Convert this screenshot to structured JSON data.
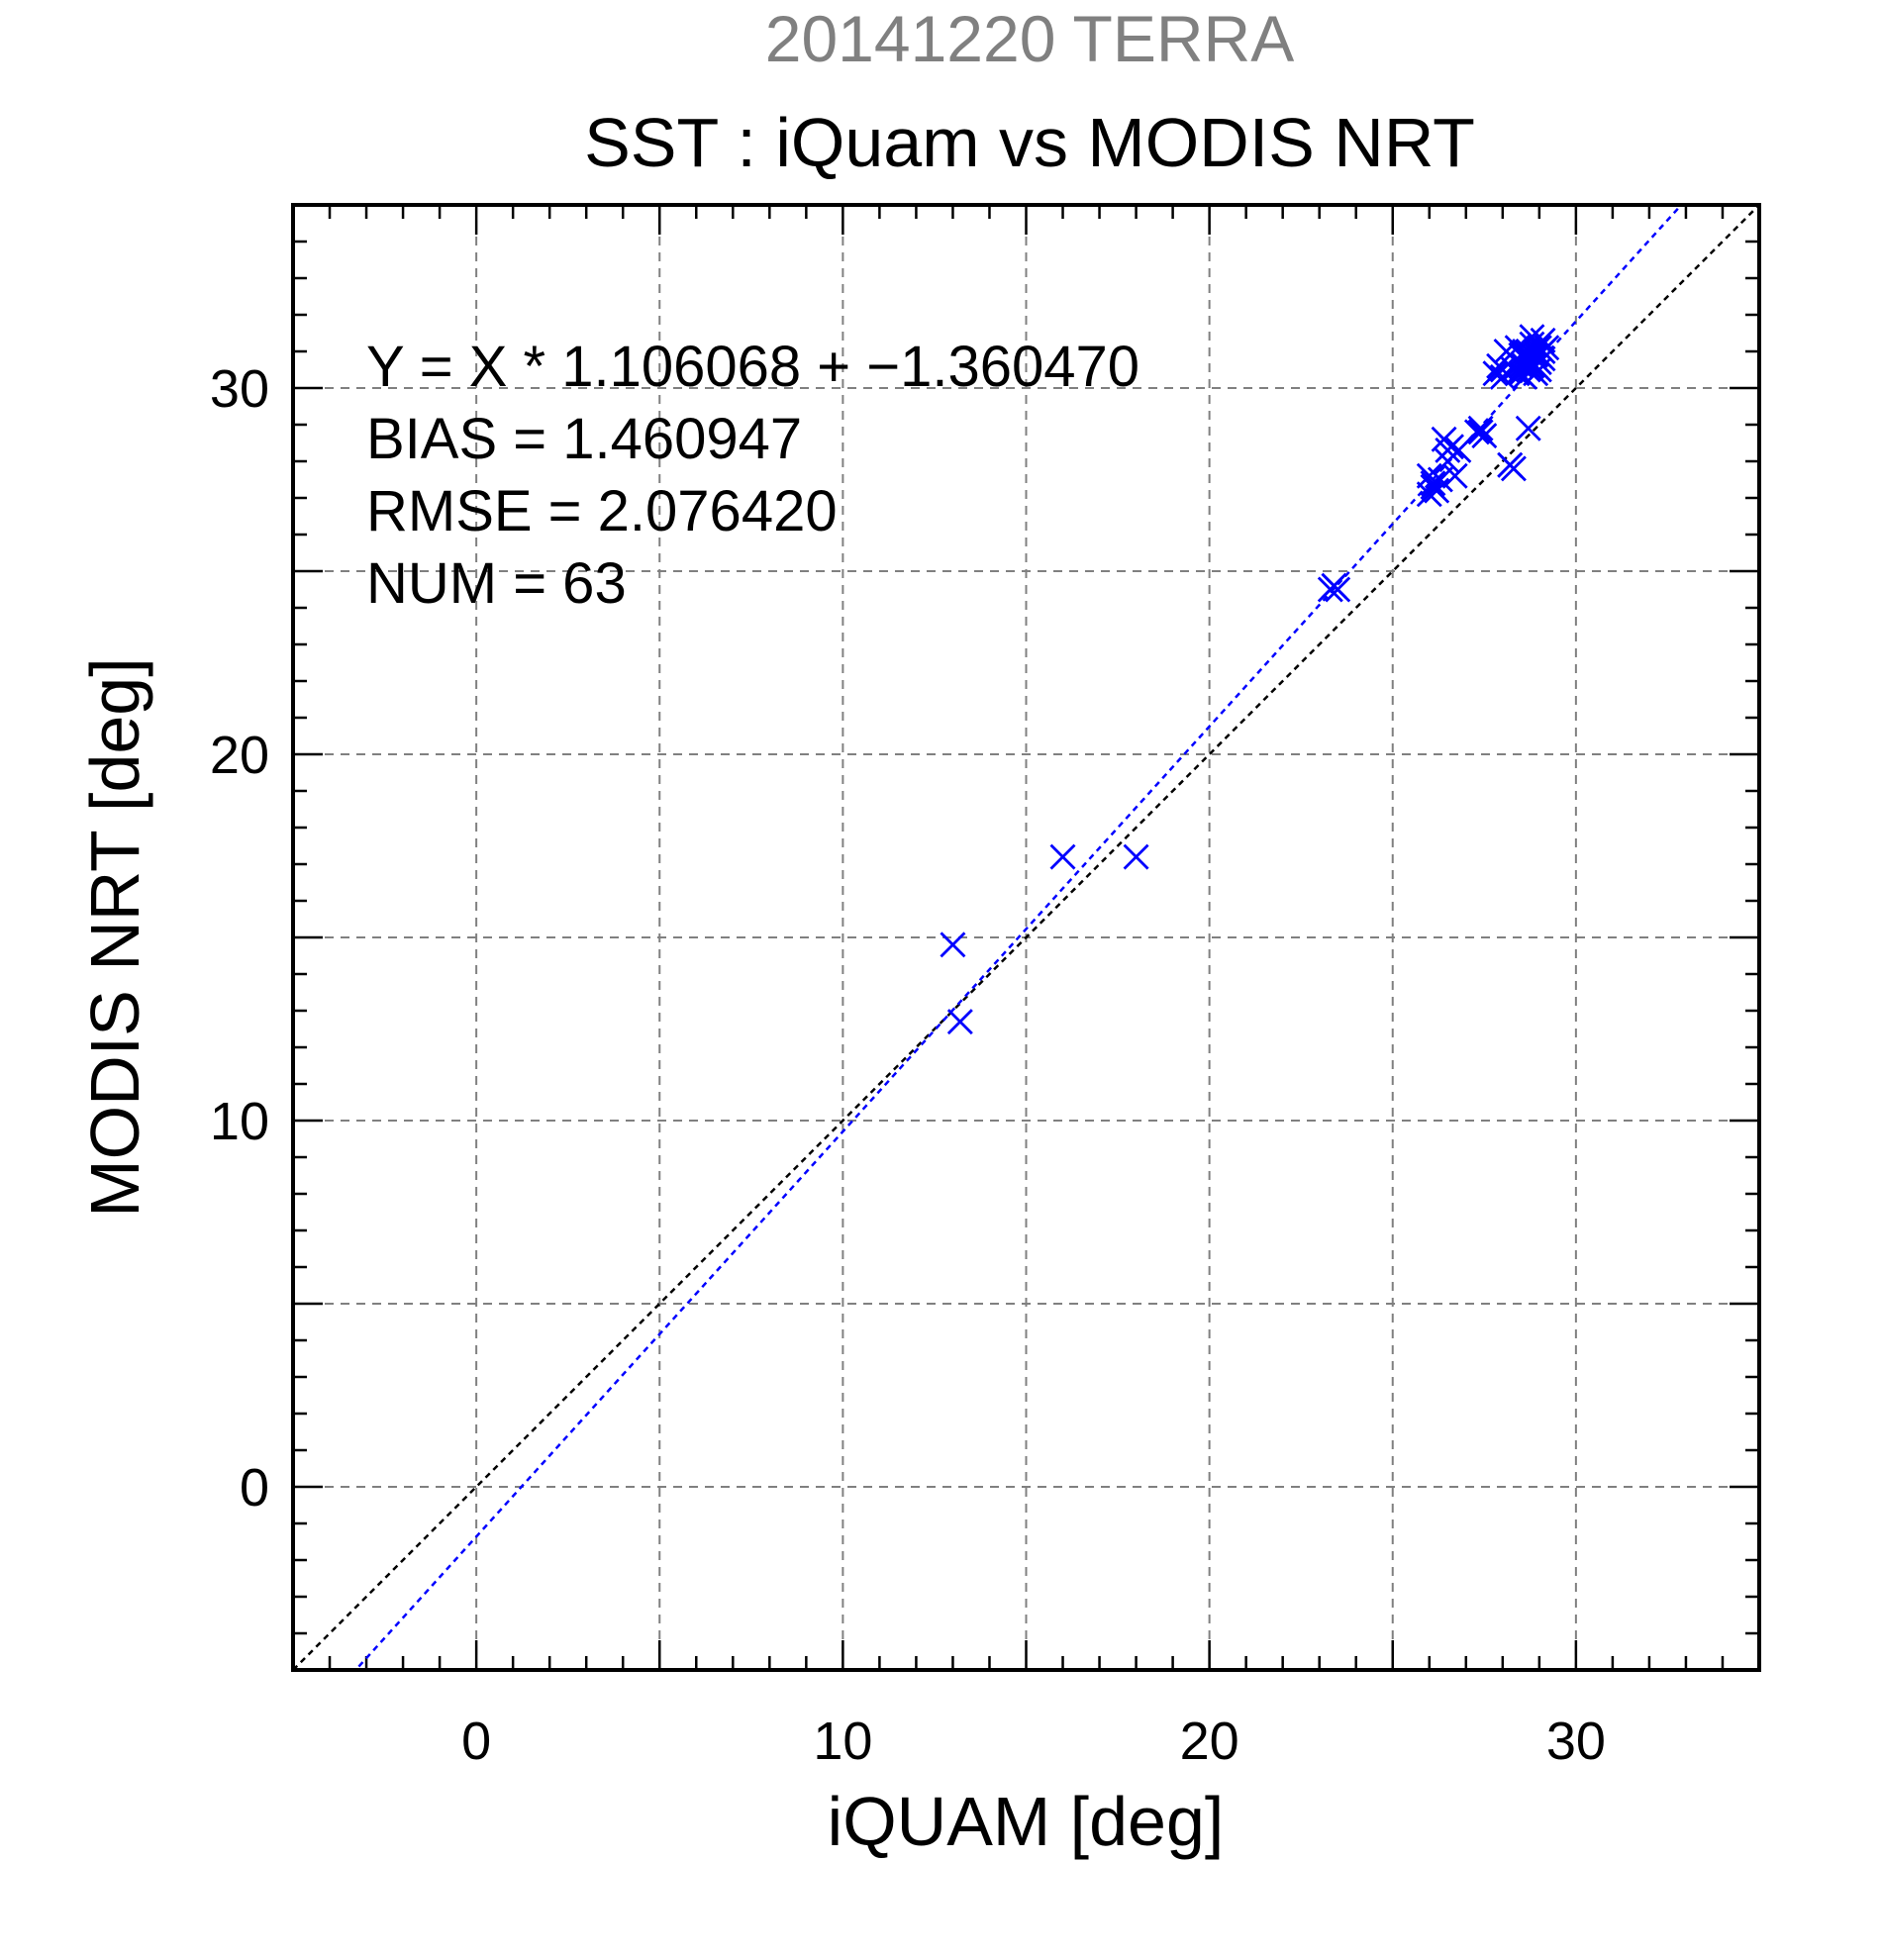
{
  "colors": {
    "background": "#ffffff",
    "supertitle": "#808080",
    "title": "#000000",
    "points": "#0000ff",
    "fit_line": "#0000ff",
    "identity_line": "#000000",
    "grid": "#808080",
    "frame": "#000000"
  },
  "chart_data": {
    "type": "scatter",
    "supertitle": "20141220 TERRA",
    "title": "SST : iQuam vs MODIS NRT",
    "xlabel": "iQUAM [deg]",
    "ylabel": "MODIS NRT [deg]",
    "xlim": [
      -5,
      35
    ],
    "ylim": [
      -5,
      35
    ],
    "xticks": [
      0,
      10,
      20,
      30
    ],
    "yticks": [
      0,
      10,
      20,
      30
    ],
    "grid": true,
    "marker": "x",
    "stats": [
      "Y = X * 1.106068 + −1.360470",
      "BIAS = 1.460947",
      "RMSE = 2.076420",
      "NUM = 63"
    ],
    "fit_line": {
      "slope": 1.106068,
      "intercept": -1.36047
    },
    "identity_line": true,
    "points": [
      {
        "x": 13.0,
        "y": 14.8
      },
      {
        "x": 13.2,
        "y": 12.7
      },
      {
        "x": 16.0,
        "y": 17.2
      },
      {
        "x": 18.0,
        "y": 17.2
      },
      {
        "x": 23.4,
        "y": 24.6
      },
      {
        "x": 23.5,
        "y": 24.5
      },
      {
        "x": 23.3,
        "y": 24.5
      },
      {
        "x": 26.0,
        "y": 27.1
      },
      {
        "x": 26.1,
        "y": 27.3
      },
      {
        "x": 26.0,
        "y": 27.6
      },
      {
        "x": 26.2,
        "y": 27.2
      },
      {
        "x": 26.3,
        "y": 27.5
      },
      {
        "x": 26.5,
        "y": 28.0
      },
      {
        "x": 26.6,
        "y": 28.4
      },
      {
        "x": 26.4,
        "y": 28.6
      },
      {
        "x": 26.7,
        "y": 27.6
      },
      {
        "x": 26.8,
        "y": 28.3
      },
      {
        "x": 27.3,
        "y": 28.8
      },
      {
        "x": 27.5,
        "y": 28.7
      },
      {
        "x": 27.4,
        "y": 28.9
      },
      {
        "x": 27.8,
        "y": 30.4
      },
      {
        "x": 27.9,
        "y": 30.6
      },
      {
        "x": 28.0,
        "y": 30.3
      },
      {
        "x": 28.1,
        "y": 31.0
      },
      {
        "x": 28.2,
        "y": 27.9
      },
      {
        "x": 28.3,
        "y": 27.8
      },
      {
        "x": 28.4,
        "y": 30.7
      },
      {
        "x": 28.5,
        "y": 30.4
      },
      {
        "x": 28.6,
        "y": 31.0
      },
      {
        "x": 28.7,
        "y": 30.5
      },
      {
        "x": 28.8,
        "y": 31.2
      },
      {
        "x": 28.7,
        "y": 28.9
      },
      {
        "x": 28.8,
        "y": 30.6
      },
      {
        "x": 28.9,
        "y": 30.9
      },
      {
        "x": 29.0,
        "y": 31.1
      },
      {
        "x": 29.1,
        "y": 31.3
      },
      {
        "x": 28.9,
        "y": 30.4
      },
      {
        "x": 29.0,
        "y": 30.7
      },
      {
        "x": 28.6,
        "y": 30.6
      },
      {
        "x": 28.5,
        "y": 30.9
      },
      {
        "x": 29.2,
        "y": 31.1
      },
      {
        "x": 28.8,
        "y": 31.4
      },
      {
        "x": 29.0,
        "y": 30.5
      },
      {
        "x": 28.7,
        "y": 30.8
      },
      {
        "x": 28.3,
        "y": 30.5
      },
      {
        "x": 28.9,
        "y": 31.0
      },
      {
        "x": 29.1,
        "y": 30.8
      },
      {
        "x": 28.6,
        "y": 30.3
      },
      {
        "x": 28.4,
        "y": 31.1
      },
      {
        "x": 28.2,
        "y": 27.9
      },
      {
        "x": 27.4,
        "y": 28.8
      },
      {
        "x": 26.5,
        "y": 28.3
      },
      {
        "x": 26.1,
        "y": 27.4
      },
      {
        "x": 23.4,
        "y": 24.6
      },
      {
        "x": 28.0,
        "y": 30.5
      },
      {
        "x": 28.9,
        "y": 30.6
      },
      {
        "x": 29.0,
        "y": 30.9
      },
      {
        "x": 28.8,
        "y": 30.7
      },
      {
        "x": 28.7,
        "y": 31.0
      },
      {
        "x": 28.6,
        "y": 30.8
      },
      {
        "x": 28.5,
        "y": 30.6
      },
      {
        "x": 29.1,
        "y": 31.0
      },
      {
        "x": 28.4,
        "y": 30.4
      }
    ]
  }
}
